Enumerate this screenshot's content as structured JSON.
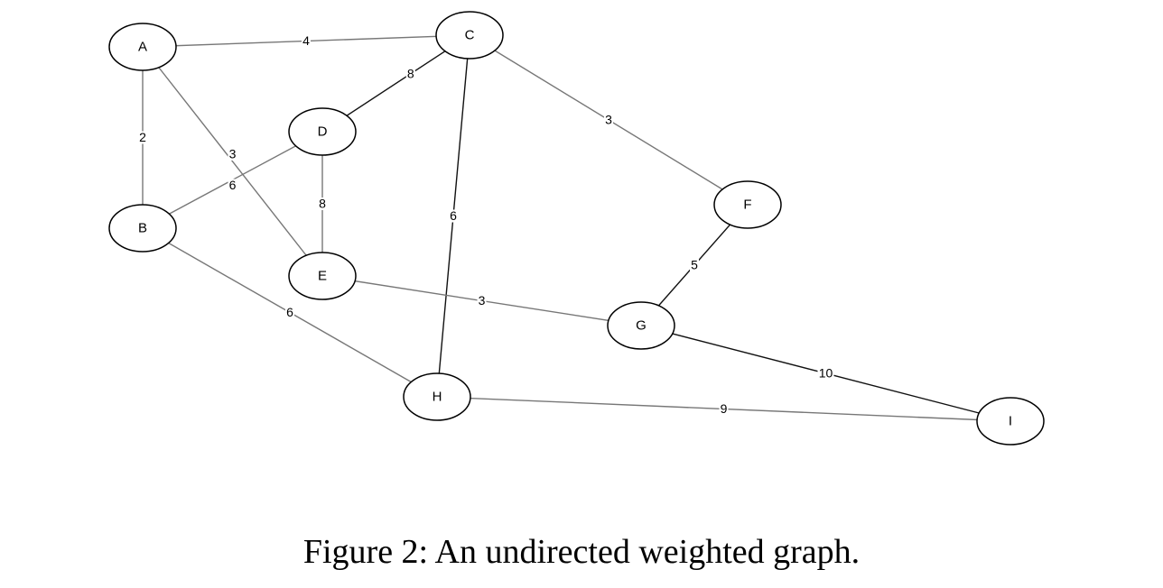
{
  "caption": "Figure 2: An undirected weighted graph.",
  "nodes": [
    {
      "id": "A",
      "label": "A"
    },
    {
      "id": "B",
      "label": "B"
    },
    {
      "id": "C",
      "label": "C"
    },
    {
      "id": "D",
      "label": "D"
    },
    {
      "id": "E",
      "label": "E"
    },
    {
      "id": "F",
      "label": "F"
    },
    {
      "id": "G",
      "label": "G"
    },
    {
      "id": "H",
      "label": "H"
    },
    {
      "id": "I",
      "label": "I"
    }
  ],
  "edges": [
    {
      "from": "A",
      "to": "C",
      "weight": "4"
    },
    {
      "from": "A",
      "to": "B",
      "weight": "2"
    },
    {
      "from": "A",
      "to": "E",
      "weight": "3"
    },
    {
      "from": "C",
      "to": "D",
      "weight": "8"
    },
    {
      "from": "C",
      "to": "F",
      "weight": "3"
    },
    {
      "from": "C",
      "to": "H",
      "weight": "6"
    },
    {
      "from": "B",
      "to": "D",
      "weight": "6"
    },
    {
      "from": "D",
      "to": "E",
      "weight": "8"
    },
    {
      "from": "F",
      "to": "G",
      "weight": "5"
    },
    {
      "from": "B",
      "to": "H",
      "weight": "6"
    },
    {
      "from": "E",
      "to": "G",
      "weight": "3"
    },
    {
      "from": "G",
      "to": "I",
      "weight": "10"
    },
    {
      "from": "H",
      "to": "I",
      "weight": "9"
    }
  ]
}
